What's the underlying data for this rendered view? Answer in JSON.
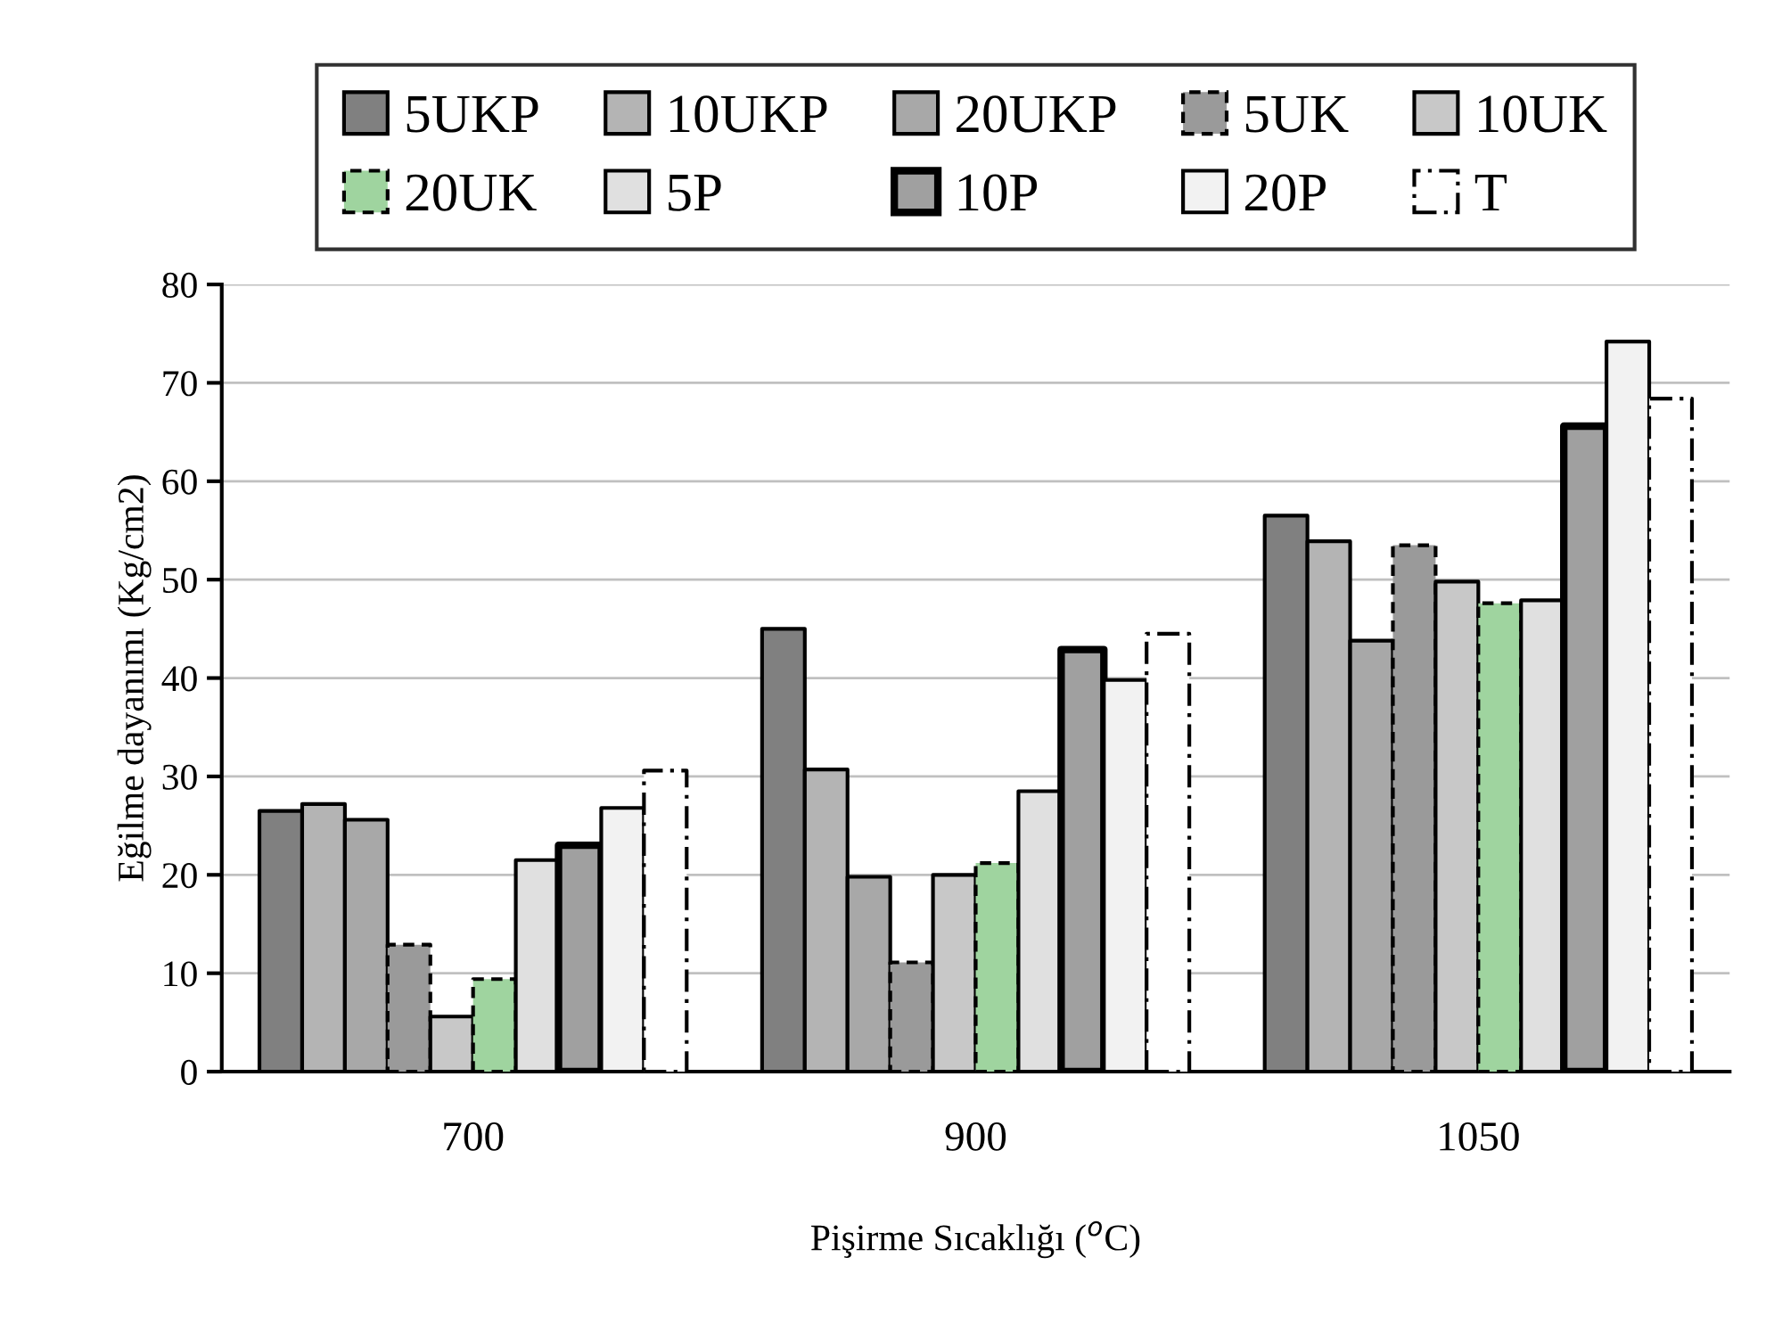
{
  "chart_data": {
    "type": "bar",
    "categories": [
      "700",
      "900",
      "1050"
    ],
    "xlabel": "Pişirme Sıcaklığı ($^{o}$C)",
    "ylabel": "Eğilme dayanımı (Kg/cm2)",
    "ylim": [
      0,
      80
    ],
    "yticks": [
      0,
      10,
      20,
      30,
      40,
      50,
      60,
      70,
      80
    ],
    "grid": "y",
    "legend": "top",
    "series": [
      {
        "name": "5UKP",
        "color": "#808080",
        "values": [
          26.5,
          45.0,
          56.5
        ]
      },
      {
        "name": "10UKP",
        "color": "#b4b4b4",
        "values": [
          27.2,
          30.7,
          53.9
        ]
      },
      {
        "name": "20UKP",
        "color": "#a8a8a8",
        "values": [
          25.6,
          19.8,
          43.8
        ]
      },
      {
        "name": "5UK",
        "color": "#9a9a9a",
        "values": [
          12.9,
          11.1,
          53.5
        ],
        "line_style": "dashed"
      },
      {
        "name": "10UK",
        "color": "#c8c8c8",
        "values": [
          5.6,
          20.0,
          49.8
        ]
      },
      {
        "name": "20UK",
        "color": "#9fd49f",
        "values": [
          9.4,
          21.2,
          47.6
        ],
        "line_style": "dashed"
      },
      {
        "name": "5P",
        "color": "#e0e0e0",
        "values": [
          21.5,
          28.5,
          47.9
        ]
      },
      {
        "name": "10P",
        "color": "#a0a0a0",
        "values": [
          23.0,
          42.9,
          65.6
        ]
      },
      {
        "name": "20P",
        "color": "#f2f2f2",
        "values": [
          26.8,
          39.8,
          74.2
        ]
      },
      {
        "name": "T",
        "color": "#ffffff",
        "values": [
          30.6,
          44.5,
          68.4
        ],
        "line_style": "dashdot"
      }
    ]
  }
}
